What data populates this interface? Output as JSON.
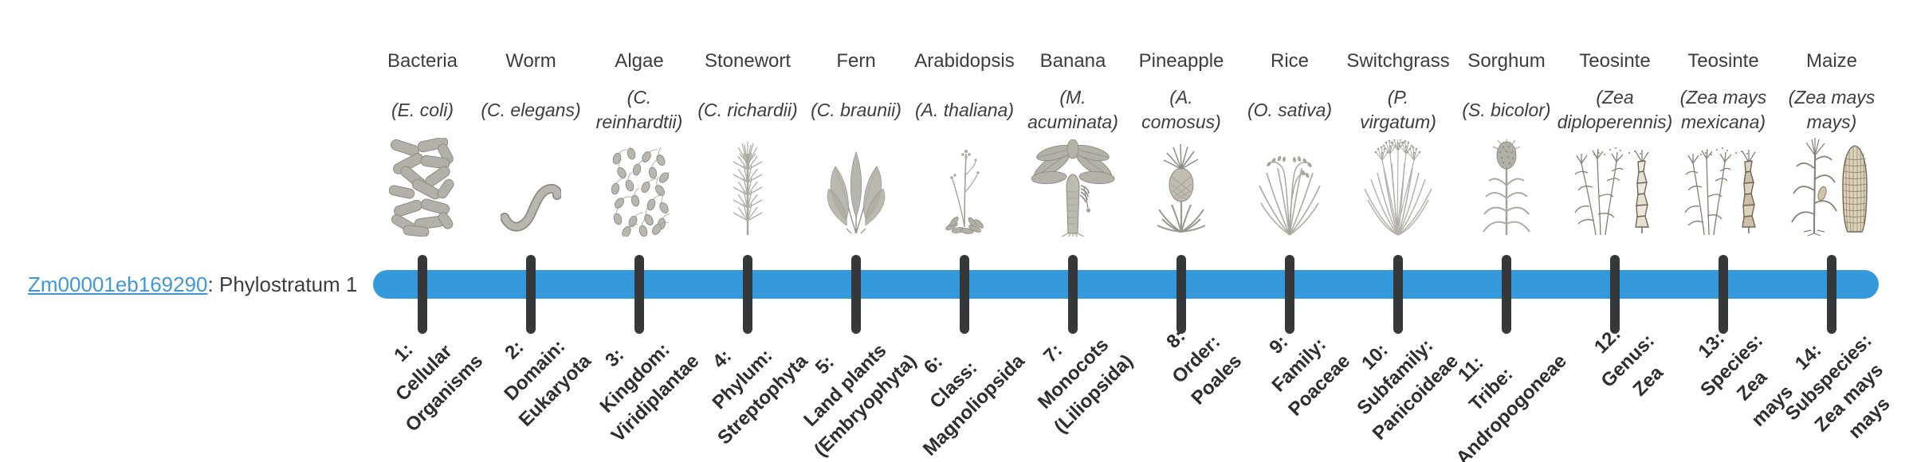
{
  "gene": {
    "id": "Zm00001eb169290",
    "suffix": ": Phylostratum 1"
  },
  "colors": {
    "bar": "#3699dc",
    "tick": "#35383b",
    "text": "#3d3d3d",
    "label": "#2e2e2e",
    "link": "#4198d8"
  },
  "chart_data": {
    "type": "table",
    "title": "Zm00001eb169290: Phylostratum 1",
    "description_visible": "Phylostrata timeline from Bacteria to Maize with 14 tick marks on a horizontal bar",
    "highlighted_stratum": 1,
    "strata": [
      {
        "index": 1,
        "label": "1: Cellular Organisms",
        "organism": "Bacteria",
        "scientific_name": "(E. coli)"
      },
      {
        "index": 2,
        "label": "2: Domain: Eukaryota",
        "organism": "Worm",
        "scientific_name": "(C. elegans)"
      },
      {
        "index": 3,
        "label": "3: Kingdom: Viridiplantae",
        "organism": "Algae",
        "scientific_name": "(C. reinhardtii)"
      },
      {
        "index": 4,
        "label": "4: Phylum: Streptophyta",
        "organism": "Stonewort",
        "scientific_name": "(C. richardii)"
      },
      {
        "index": 5,
        "label": "5: Land plants (Embryophyta)",
        "organism": "Fern",
        "scientific_name": "(C. braunii)"
      },
      {
        "index": 6,
        "label": "6: Class: Magnoliopsida",
        "organism": "Arabidopsis",
        "scientific_name": "(A. thaliana)"
      },
      {
        "index": 7,
        "label": "7: Monocots (Liliopsida)",
        "organism": "Banana",
        "scientific_name": "(M. acuminata)"
      },
      {
        "index": 8,
        "label": "8: Order: Poales",
        "organism": "Pineapple",
        "scientific_name": "(A. comosus)"
      },
      {
        "index": 9,
        "label": "9: Family: Poaceae",
        "organism": "Rice",
        "scientific_name": "(O. sativa)"
      },
      {
        "index": 10,
        "label": "10: Subfamily: Panicoideae",
        "organism": "Switchgrass",
        "scientific_name": "(P. virgatum)"
      },
      {
        "index": 11,
        "label": "11: Tribe: Andropogoneae",
        "organism": "Sorghum",
        "scientific_name": "(S. bicolor)"
      },
      {
        "index": 12,
        "label": "12: Genus: Zea",
        "organism": "Teosinte",
        "scientific_name": "(Zea diploperennis)"
      },
      {
        "index": 13,
        "label": "13: Species: Zea mays",
        "organism": "Teosinte",
        "scientific_name": "(Zea mays mexicana)"
      },
      {
        "index": 14,
        "label": "14: Subspecies: Zea mays mays",
        "organism": "Maize",
        "scientific_name": "(Zea mays mays)"
      }
    ]
  },
  "organisms": [
    {
      "name": "Bacteria",
      "sci_lines": [
        "(E. coli)"
      ],
      "icon": "bacteria-icon",
      "stratum_lines": [
        "1:",
        "Cellular",
        "Organisms"
      ]
    },
    {
      "name": "Worm",
      "sci_lines": [
        "(C. elegans)"
      ],
      "icon": "worm-icon",
      "stratum_lines": [
        "2:",
        "Domain:",
        "Eukaryota"
      ]
    },
    {
      "name": "Algae",
      "sci_lines": [
        "(C.",
        "reinhardtii)"
      ],
      "icon": "algae-icon",
      "stratum_lines": [
        "3:",
        "Kingdom:",
        "Viridiplantae"
      ]
    },
    {
      "name": "Stonewort",
      "sci_lines": [
        "(C. richardii)"
      ],
      "icon": "stonewort-icon",
      "stratum_lines": [
        "4:",
        "Phylum:",
        "Streptophyta"
      ]
    },
    {
      "name": "Fern",
      "sci_lines": [
        "(C. braunii)"
      ],
      "icon": "fern-icon",
      "stratum_lines": [
        "5:",
        "Land plants",
        "(Embryophyta)"
      ]
    },
    {
      "name": "Arabidopsis",
      "sci_lines": [
        "(A. thaliana)"
      ],
      "icon": "arabidopsis-icon",
      "stratum_lines": [
        "6:",
        "Class:",
        "Magnoliopsida"
      ]
    },
    {
      "name": "Banana",
      "sci_lines": [
        "(M.",
        "acuminata)"
      ],
      "icon": "banana-icon",
      "stratum_lines": [
        "7:",
        "Monocots",
        "(Liliopsida)"
      ]
    },
    {
      "name": "Pineapple",
      "sci_lines": [
        "(A.",
        "comosus)"
      ],
      "icon": "pineapple-icon",
      "stratum_lines": [
        "8:",
        "Order:",
        "Poales"
      ]
    },
    {
      "name": "Rice",
      "sci_lines": [
        "(O. sativa)"
      ],
      "icon": "rice-icon",
      "stratum_lines": [
        "9:",
        "Family:",
        "Poaceae"
      ]
    },
    {
      "name": "Switchgrass",
      "sci_lines": [
        "(P.",
        "virgatum)"
      ],
      "icon": "switchgrass-icon",
      "stratum_lines": [
        "10:",
        "Subfamily:",
        "Panicoideae"
      ]
    },
    {
      "name": "Sorghum",
      "sci_lines": [
        "(S. bicolor)"
      ],
      "icon": "sorghum-icon",
      "stratum_lines": [
        "11:",
        "Tribe:",
        "Andropogoneae"
      ]
    },
    {
      "name": "Teosinte",
      "sci_lines": [
        "(Zea",
        "diploperennis)"
      ],
      "icon": "teosinte-diplo-icon",
      "stratum_lines": [
        "12:",
        "Genus:",
        "Zea"
      ]
    },
    {
      "name": "Teosinte",
      "sci_lines": [
        "(Zea mays",
        "mexicana)"
      ],
      "icon": "teosinte-mex-icon",
      "stratum_lines": [
        "13:",
        "Species:",
        "Zea",
        "mays"
      ]
    },
    {
      "name": "Maize",
      "sci_lines": [
        "(Zea mays",
        "mays)"
      ],
      "icon": "maize-icon",
      "stratum_lines": [
        "14:",
        "Subspecies:",
        "Zea mays",
        "mays"
      ]
    }
  ]
}
